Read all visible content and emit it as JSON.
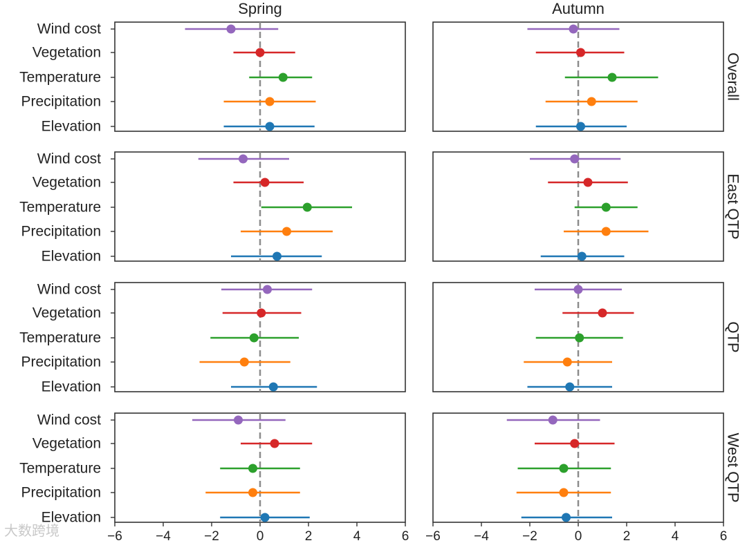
{
  "chart_data": {
    "type": "forest",
    "columns": [
      "Spring",
      "Autumn"
    ],
    "rows": [
      "Overall",
      "East QTP",
      "QTP",
      "West QTP"
    ],
    "categories": [
      "Wind cost",
      "Vegetation",
      "Temperature",
      "Precipitation",
      "Elevation"
    ],
    "category_colors": {
      "Wind cost": "#9467bd",
      "Vegetation": "#d62728",
      "Temperature": "#2ca02c",
      "Precipitation": "#ff7f0e",
      "Elevation": "#1f77b4"
    },
    "xlim": [
      -6,
      6
    ],
    "xticks": [
      -6,
      -4,
      -2,
      0,
      2,
      4,
      6
    ],
    "xtick_labels": [
      "−6",
      "−4",
      "−2",
      "0",
      "2",
      "4",
      "6"
    ],
    "reference_line": 0,
    "panels": [
      {
        "row": "Overall",
        "column": "Spring",
        "points": [
          {
            "category": "Wind cost",
            "estimate": -1.2,
            "lower": -3.1,
            "upper": 0.75
          },
          {
            "category": "Vegetation",
            "estimate": 0.0,
            "lower": -1.1,
            "upper": 1.45
          },
          {
            "category": "Temperature",
            "estimate": 0.95,
            "lower": -0.45,
            "upper": 2.15
          },
          {
            "category": "Precipitation",
            "estimate": 0.4,
            "lower": -1.5,
            "upper": 2.3
          },
          {
            "category": "Elevation",
            "estimate": 0.4,
            "lower": -1.5,
            "upper": 2.25
          }
        ]
      },
      {
        "row": "Overall",
        "column": "Autumn",
        "points": [
          {
            "category": "Wind cost",
            "estimate": -0.2,
            "lower": -2.1,
            "upper": 1.7
          },
          {
            "category": "Vegetation",
            "estimate": 0.1,
            "lower": -1.75,
            "upper": 1.9
          },
          {
            "category": "Temperature",
            "estimate": 1.4,
            "lower": -0.55,
            "upper": 3.3
          },
          {
            "category": "Precipitation",
            "estimate": 0.55,
            "lower": -1.35,
            "upper": 2.45
          },
          {
            "category": "Elevation",
            "estimate": 0.1,
            "lower": -1.75,
            "upper": 2.0
          }
        ]
      },
      {
        "row": "East QTP",
        "column": "Spring",
        "points": [
          {
            "category": "Wind cost",
            "estimate": -0.7,
            "lower": -2.55,
            "upper": 1.2
          },
          {
            "category": "Vegetation",
            "estimate": 0.2,
            "lower": -1.1,
            "upper": 1.8
          },
          {
            "category": "Temperature",
            "estimate": 1.95,
            "lower": 0.05,
            "upper": 3.8
          },
          {
            "category": "Precipitation",
            "estimate": 1.1,
            "lower": -0.8,
            "upper": 3.0
          },
          {
            "category": "Elevation",
            "estimate": 0.7,
            "lower": -1.2,
            "upper": 2.55
          }
        ]
      },
      {
        "row": "East QTP",
        "column": "Autumn",
        "points": [
          {
            "category": "Wind cost",
            "estimate": -0.15,
            "lower": -2.0,
            "upper": 1.75
          },
          {
            "category": "Vegetation",
            "estimate": 0.4,
            "lower": -1.25,
            "upper": 2.05
          },
          {
            "category": "Temperature",
            "estimate": 1.15,
            "lower": -0.15,
            "upper": 2.45
          },
          {
            "category": "Precipitation",
            "estimate": 1.15,
            "lower": -0.6,
            "upper": 2.9
          },
          {
            "category": "Elevation",
            "estimate": 0.15,
            "lower": -1.55,
            "upper": 1.9
          }
        ]
      },
      {
        "row": "QTP",
        "column": "Spring",
        "points": [
          {
            "category": "Wind cost",
            "estimate": 0.3,
            "lower": -1.6,
            "upper": 2.15
          },
          {
            "category": "Vegetation",
            "estimate": 0.05,
            "lower": -1.55,
            "upper": 1.7
          },
          {
            "category": "Temperature",
            "estimate": -0.25,
            "lower": -2.05,
            "upper": 1.6
          },
          {
            "category": "Precipitation",
            "estimate": -0.65,
            "lower": -2.5,
            "upper": 1.25
          },
          {
            "category": "Elevation",
            "estimate": 0.55,
            "lower": -1.2,
            "upper": 2.35
          }
        ]
      },
      {
        "row": "QTP",
        "column": "Autumn",
        "points": [
          {
            "category": "Wind cost",
            "estimate": 0.0,
            "lower": -1.8,
            "upper": 1.8
          },
          {
            "category": "Vegetation",
            "estimate": 1.0,
            "lower": -0.65,
            "upper": 2.3
          },
          {
            "category": "Temperature",
            "estimate": 0.05,
            "lower": -1.75,
            "upper": 1.85
          },
          {
            "category": "Precipitation",
            "estimate": -0.45,
            "lower": -2.25,
            "upper": 1.4
          },
          {
            "category": "Elevation",
            "estimate": -0.35,
            "lower": -2.1,
            "upper": 1.4
          }
        ]
      },
      {
        "row": "West QTP",
        "column": "Spring",
        "points": [
          {
            "category": "Wind cost",
            "estimate": -0.9,
            "lower": -2.8,
            "upper": 1.05
          },
          {
            "category": "Vegetation",
            "estimate": 0.6,
            "lower": -0.8,
            "upper": 2.15
          },
          {
            "category": "Temperature",
            "estimate": -0.3,
            "lower": -1.65,
            "upper": 1.65
          },
          {
            "category": "Precipitation",
            "estimate": -0.3,
            "lower": -2.25,
            "upper": 1.65
          },
          {
            "category": "Elevation",
            "estimate": 0.2,
            "lower": -1.65,
            "upper": 2.05
          }
        ]
      },
      {
        "row": "West QTP",
        "column": "Autumn",
        "points": [
          {
            "category": "Wind cost",
            "estimate": -1.05,
            "lower": -2.95,
            "upper": 0.9
          },
          {
            "category": "Vegetation",
            "estimate": -0.15,
            "lower": -1.8,
            "upper": 1.5
          },
          {
            "category": "Temperature",
            "estimate": -0.6,
            "lower": -2.5,
            "upper": 1.35
          },
          {
            "category": "Precipitation",
            "estimate": -0.6,
            "lower": -2.55,
            "upper": 1.35
          },
          {
            "category": "Elevation",
            "estimate": -0.5,
            "lower": -2.35,
            "upper": 1.4
          }
        ]
      }
    ]
  },
  "watermark": "大数跨境"
}
